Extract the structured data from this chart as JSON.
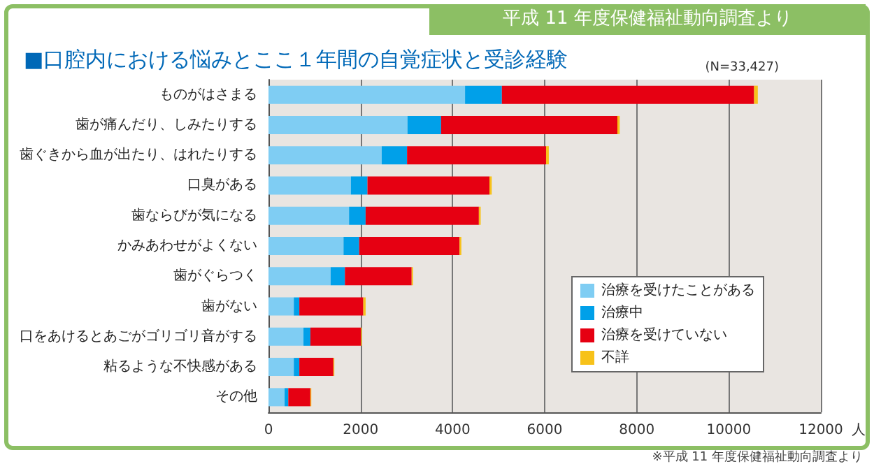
{
  "chart_data": {
    "type": "bar",
    "orientation": "horizontal",
    "stacked": true,
    "title": "■口腔内における悩みとここ１年間の自覚症状と受診経験",
    "xlabel": "人",
    "categories": [
      "ものがはさまる",
      "歯が痛んだり、しみたりする",
      "歯ぐきから血が出たり、はれたりする",
      "口臭がある",
      "歯ならびが気になる",
      "かみあわせがよくない",
      "歯がぐらつく",
      "歯がない",
      "口をあけるとあごがゴリゴリ音がする",
      "粘るような不快感がある",
      "その他"
    ],
    "series": [
      {
        "name": "治療を受けたことがある",
        "color": "#7fcdf3",
        "values": [
          4270,
          3020,
          2460,
          1790,
          1750,
          1630,
          1350,
          550,
          760,
          550,
          350
        ]
      },
      {
        "name": "治療中",
        "color": "#00a0e9",
        "values": [
          800,
          730,
          550,
          360,
          360,
          340,
          310,
          120,
          150,
          120,
          80
        ]
      },
      {
        "name": "治療を受けていない",
        "color": "#e60012",
        "values": [
          5480,
          3830,
          3020,
          2650,
          2460,
          2180,
          1450,
          1390,
          1100,
          740,
          480
        ]
      },
      {
        "name": "不詳",
        "color": "#f7c21a",
        "values": [
          80,
          50,
          60,
          50,
          40,
          40,
          30,
          50,
          20,
          20,
          20
        ]
      }
    ],
    "xlim": [
      0,
      12000
    ],
    "xticks": [
      0,
      2000,
      4000,
      6000,
      8000,
      10000,
      12000
    ],
    "grid": "x",
    "legend": "bottom right",
    "annotations": [
      "平成 11 年度保健福祉動向調査より",
      "(N=33,427)",
      "※平成 11 年度保健福祉動向調査より"
    ]
  }
}
